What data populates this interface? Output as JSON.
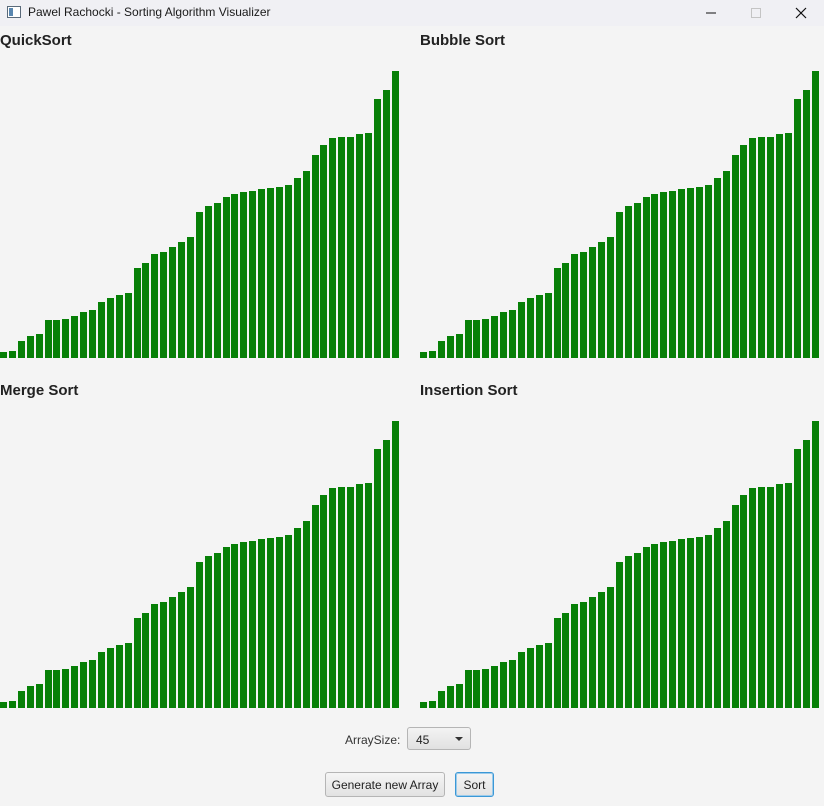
{
  "window": {
    "title": "Pawel Rachocki - Sorting Algorithm Visualizer"
  },
  "colors": {
    "bar": "#078007",
    "background": "#f4f4f4"
  },
  "panels": [
    {
      "title": "QuickSort"
    },
    {
      "title": "Bubble Sort"
    },
    {
      "title": "Merge Sort"
    },
    {
      "title": "Insertion Sort"
    }
  ],
  "array_values": [
    6,
    7,
    17,
    22,
    24,
    38,
    38,
    39,
    42,
    46,
    48,
    56,
    60,
    63,
    65,
    90,
    95,
    104,
    106,
    111,
    116,
    121,
    146,
    152,
    155,
    161,
    164,
    166,
    167,
    169,
    170,
    171,
    173,
    180,
    187,
    203,
    213,
    220,
    221,
    221,
    224,
    225,
    259,
    268,
    287
  ],
  "controls": {
    "array_size_label": "ArraySize:",
    "array_size_value": "45",
    "generate_label": "Generate new Array",
    "sort_label": "Sort"
  }
}
